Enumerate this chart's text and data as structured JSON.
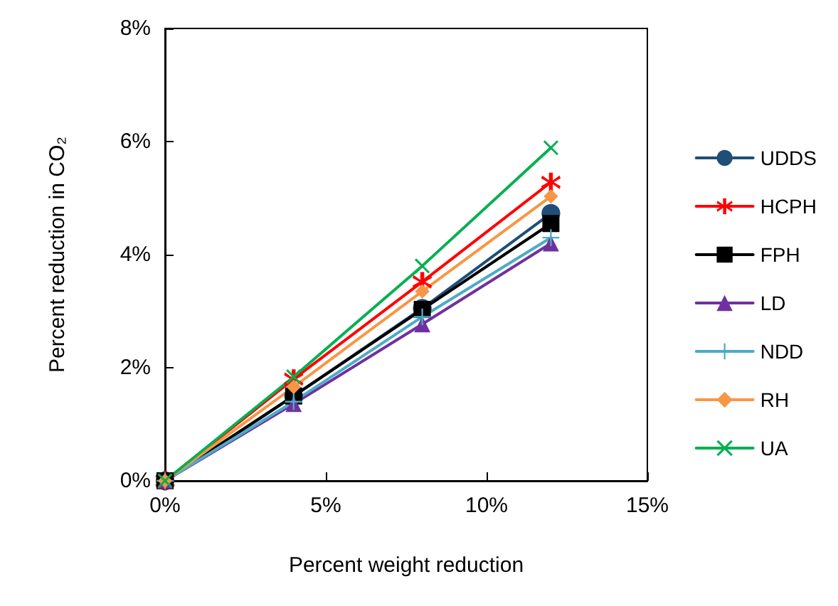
{
  "chart_data": {
    "type": "line",
    "xlabel": "Percent weight reduction",
    "ylabel": "Percent reduction in CO₂",
    "x": [
      0,
      4,
      8,
      12
    ],
    "xlim": [
      0,
      15
    ],
    "xticks": [
      {
        "value": 0,
        "label": "0%"
      },
      {
        "value": 5,
        "label": "5%"
      },
      {
        "value": 10,
        "label": "10%"
      },
      {
        "value": 15,
        "label": "15%"
      }
    ],
    "ylim": [
      0,
      8
    ],
    "yticks": [
      {
        "value": 0,
        "label": "0%"
      },
      {
        "value": 2,
        "label": "2%"
      },
      {
        "value": 4,
        "label": "4%"
      },
      {
        "value": 6,
        "label": "6%"
      },
      {
        "value": 8,
        "label": "8%"
      }
    ],
    "grid": false,
    "legend": "right",
    "line_style": "solid",
    "series": [
      {
        "name": "UDDS",
        "color": "#1f4e79",
        "marker": "circle",
        "values": [
          0,
          1.5,
          3.05,
          4.73
        ]
      },
      {
        "name": "HCPH",
        "color": "#ff0000",
        "marker": "star",
        "values": [
          0,
          1.8,
          3.52,
          5.28
        ]
      },
      {
        "name": "FPH",
        "color": "#000000",
        "marker": "square",
        "values": [
          0,
          1.5,
          3.03,
          4.55
        ]
      },
      {
        "name": "LD",
        "color": "#7030a0",
        "marker": "triangle",
        "values": [
          0,
          1.36,
          2.77,
          4.2
        ]
      },
      {
        "name": "NDD",
        "color": "#4bacc6",
        "marker": "cross",
        "values": [
          0,
          1.4,
          2.9,
          4.3
        ]
      },
      {
        "name": "RH",
        "color": "#f79646",
        "marker": "diamond",
        "values": [
          0,
          1.66,
          3.35,
          5.03
        ]
      },
      {
        "name": "UA",
        "color": "#00b050",
        "marker": "cross",
        "values": [
          0,
          1.84,
          3.8,
          5.89
        ]
      }
    ]
  }
}
